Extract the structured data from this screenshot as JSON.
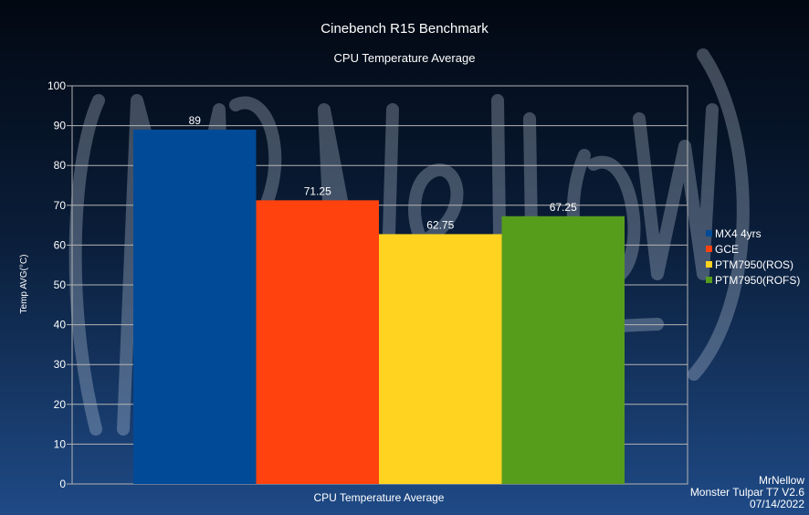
{
  "chart_data": {
    "type": "bar",
    "title": "Cinebench R15 Benchmark",
    "subtitle": "CPU Temperature Average",
    "xlabel": "CPU Temperature Average",
    "ylabel": "Temp AVG(°C)",
    "ylim": [
      0,
      100
    ],
    "yticks": [
      "0",
      "10",
      "20",
      "30",
      "40",
      "50",
      "60",
      "70",
      "80",
      "90",
      "100"
    ],
    "grid": true,
    "legend_position": "right",
    "series": [
      {
        "name": "MX4 4yrs",
        "value": 89,
        "label": "89",
        "color": "#004a97"
      },
      {
        "name": "GCE",
        "value": 71.25,
        "label": "71.25",
        "color": "#ff420e"
      },
      {
        "name": "PTM7950(ROS)",
        "value": 62.75,
        "label": "62.75",
        "color": "#ffd320"
      },
      {
        "name": "PTM7950(ROFS)",
        "value": 67.25,
        "label": "67.25",
        "color": "#579d1c"
      }
    ]
  },
  "credits": {
    "author": "MrNellow",
    "device": "Monster Tulpar T7 V2.6",
    "date": "07/14/2022"
  },
  "watermark": {
    "text": "MrNellow"
  }
}
